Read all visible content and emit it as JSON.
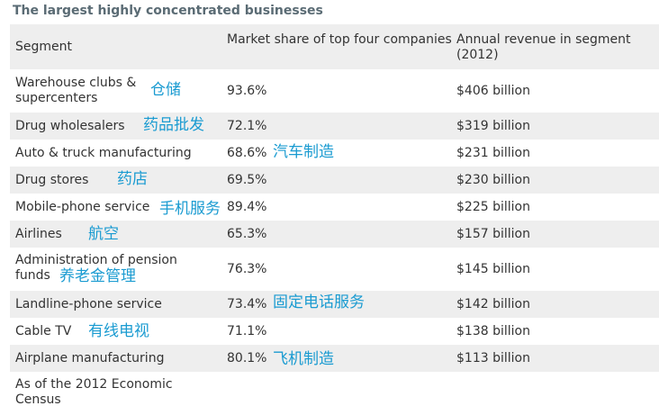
{
  "title": "The largest highly concentrated businesses",
  "headers": {
    "segment": "Segment",
    "share": "Market share of top four companies",
    "revenue": "Annual revenue in segment (2012)"
  },
  "rows": [
    {
      "segment": "Warehouse clubs & supercenters",
      "share": "93.6%",
      "revenue": "$406 billion"
    },
    {
      "segment": "Drug wholesalers",
      "share": "72.1%",
      "revenue": "$319 billion"
    },
    {
      "segment": "Auto & truck manufacturing",
      "share": "68.6%",
      "revenue": "$231 billion"
    },
    {
      "segment": "Drug stores",
      "share": "69.5%",
      "revenue": "$230 billion"
    },
    {
      "segment": "Mobile-phone service",
      "share": "89.4%",
      "revenue": "$225 billion"
    },
    {
      "segment": "Airlines",
      "share": "65.3%",
      "revenue": "$157 billion"
    },
    {
      "segment": "Administration of pension funds",
      "share": "76.3%",
      "revenue": "$145 billion"
    },
    {
      "segment": "Landline-phone service",
      "share": "73.4%",
      "revenue": "$142 billion"
    },
    {
      "segment": "Cable TV",
      "share": "71.1%",
      "revenue": "$138 billion"
    },
    {
      "segment": "Airplane manufacturing",
      "share": "80.1%",
      "revenue": "$113 billion"
    }
  ],
  "footer": "As of the 2012 Economic Census",
  "annotations": [
    "仓储",
    "药品批发",
    "汽车制造",
    "药店",
    "手机服务",
    "航空",
    "养老金管理",
    "固定电话服务",
    "有线电视",
    "飞机制造"
  ],
  "colors": {
    "shaded_row": "#eeeeee",
    "annotation": "#1a9bd1",
    "title": "#5a6b74"
  }
}
